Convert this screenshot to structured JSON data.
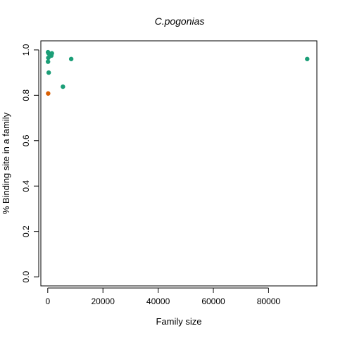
{
  "chart_data": {
    "type": "scatter",
    "title": "C.pogonias",
    "xlabel": "Family size",
    "ylabel": "% Binding site in a family",
    "xlim": [
      -2500,
      97500
    ],
    "ylim": [
      -0.04,
      1.04
    ],
    "xticks": [
      0,
      20000,
      40000,
      60000,
      80000
    ],
    "xtick_labels": [
      "0",
      "20000",
      "40000",
      "60000",
      "80000"
    ],
    "yticks": [
      0.0,
      0.2,
      0.4,
      0.6,
      0.8,
      1.0
    ],
    "ytick_labels": [
      "0.0",
      "0.2",
      "0.4",
      "0.6",
      "0.8",
      "1.0"
    ],
    "grid": false,
    "colors": {
      "teal": "#1b9e77",
      "orange": "#d95f02"
    },
    "series": [
      {
        "color": "#1b9e77",
        "points": [
          {
            "x": 100,
            "y": 0.99
          },
          {
            "x": 300,
            "y": 0.985
          },
          {
            "x": 700,
            "y": 0.98
          },
          {
            "x": 1300,
            "y": 0.975
          },
          {
            "x": 1500,
            "y": 0.985
          },
          {
            "x": 200,
            "y": 0.965
          },
          {
            "x": 100,
            "y": 0.948
          },
          {
            "x": 350,
            "y": 0.9
          },
          {
            "x": 5500,
            "y": 0.838
          },
          {
            "x": 8500,
            "y": 0.96
          },
          {
            "x": 94000,
            "y": 0.96
          }
        ]
      },
      {
        "color": "#d95f02",
        "points": [
          {
            "x": 150,
            "y": 0.808
          }
        ]
      }
    ]
  }
}
